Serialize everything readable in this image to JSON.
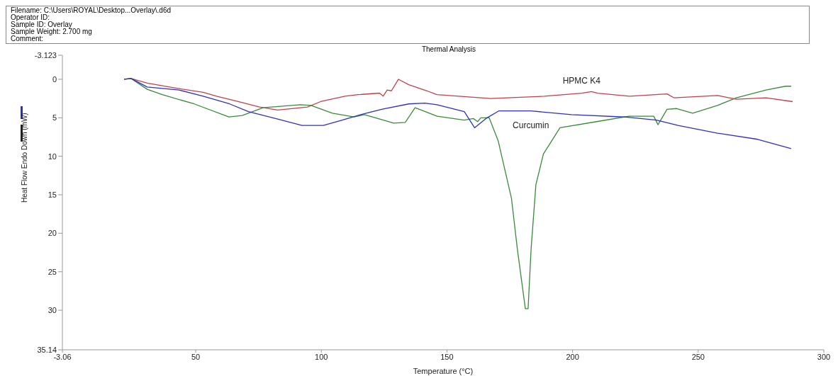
{
  "chart_data": {
    "type": "line",
    "title": "Thermal Analysis",
    "xlabel": "Temperature (°C)",
    "ylabel": "Heat Flow Endo Down (mW)",
    "annotations": [
      "Filename: C:\\Users\\ROYAL\\Desktop...Overlay\\.d6d",
      "Operator ID:",
      "Sample ID: Overlay",
      "Sample Weight: 2.700 mg",
      "Comment:"
    ],
    "xlim": [
      -3.06,
      300
    ],
    "xticks": [
      -3.06,
      50,
      100,
      150,
      200,
      250,
      300
    ],
    "ylim": [
      35.14,
      -3.123
    ],
    "yticks": [
      -3.123,
      0,
      5,
      10,
      15,
      20,
      25,
      30,
      35.14
    ],
    "marker": "none",
    "line_style": "solid",
    "series": [
      {
        "name": "HPMC K4",
        "color": "#c0404a",
        "x": [
          21.5,
          24.3,
          30.7,
          41.2,
          53,
          58.3,
          66.9,
          75.4,
          82.6,
          94.5,
          99.7,
          109.4,
          114.6,
          123.2,
          124.6,
          126.2,
          127.9,
          130.7,
          134.8,
          142,
          146,
          167.4,
          188.7,
          203.6,
          207.5,
          210,
          222.7,
          237.6,
          240.3,
          257.7,
          265.2,
          277,
          287.6
        ],
        "values": [
          0,
          -0.1,
          0.5,
          1.1,
          1.7,
          2.2,
          2.9,
          3.6,
          4.0,
          3.6,
          2.9,
          2.2,
          2.0,
          1.8,
          2.2,
          1.4,
          1.5,
          0.0,
          0.7,
          1.5,
          2.0,
          2.5,
          2.2,
          1.8,
          1.6,
          1.8,
          2.2,
          1.9,
          2.4,
          2.1,
          2.6,
          2.4,
          2.9
        ]
      },
      {
        "color": "#3a8a3a",
        "x": [
          21.5,
          24.3,
          30.7,
          36.7,
          49.4,
          63.2,
          68.5,
          76.8,
          91.7,
          95.9,
          104.4,
          113,
          117.1,
          123.5,
          128.8,
          133.4,
          137.3,
          139,
          146.1,
          156.9,
          160.5,
          162.2,
          163.5,
          166.8,
          170.4,
          175.7,
          178,
          181.2,
          182.3,
          183.5,
          185.4,
          188.4,
          195,
          209.6,
          222.4,
          232.3,
          234,
          237.6,
          241.4,
          247.8,
          257.7,
          265.2,
          277,
          284.8,
          287
        ],
        "values": [
          0,
          -0.1,
          1.3,
          2.0,
          3.2,
          4.9,
          4.7,
          3.7,
          3.3,
          3.4,
          4.4,
          4.9,
          4.6,
          5.2,
          5.7,
          5.6,
          3.7,
          3.9,
          4.8,
          5.3,
          5.1,
          5.5,
          5.0,
          5.0,
          8.0,
          15.5,
          22,
          29.8,
          29.8,
          22,
          13.7,
          9.7,
          6.3,
          5.5,
          4.8,
          4.8,
          5.9,
          3.9,
          3.8,
          4.4,
          3.4,
          2.4,
          1.4,
          0.9,
          0.9
        ]
      },
      {
        "name": "Curcumin",
        "color": "#3030c0",
        "x": [
          21.5,
          24.3,
          30.7,
          43.4,
          53,
          63.5,
          71,
          81.8,
          92.3,
          100.8,
          108.3,
          115.7,
          124,
          134.8,
          141.2,
          146,
          156.9,
          161,
          165.5,
          170.7,
          183.4,
          199.5,
          220.7,
          233.4,
          242,
          257.7,
          273.7,
          287
        ],
        "values": [
          0,
          -0.1,
          1.0,
          1.4,
          2.2,
          3.2,
          4.2,
          5.1,
          6.0,
          6.0,
          5.3,
          4.6,
          3.9,
          3.2,
          3.1,
          3.3,
          4.2,
          6.3,
          5.1,
          4.1,
          4.1,
          4.6,
          4.9,
          5.3,
          6.0,
          7.0,
          7.8,
          9.0
        ]
      }
    ]
  }
}
